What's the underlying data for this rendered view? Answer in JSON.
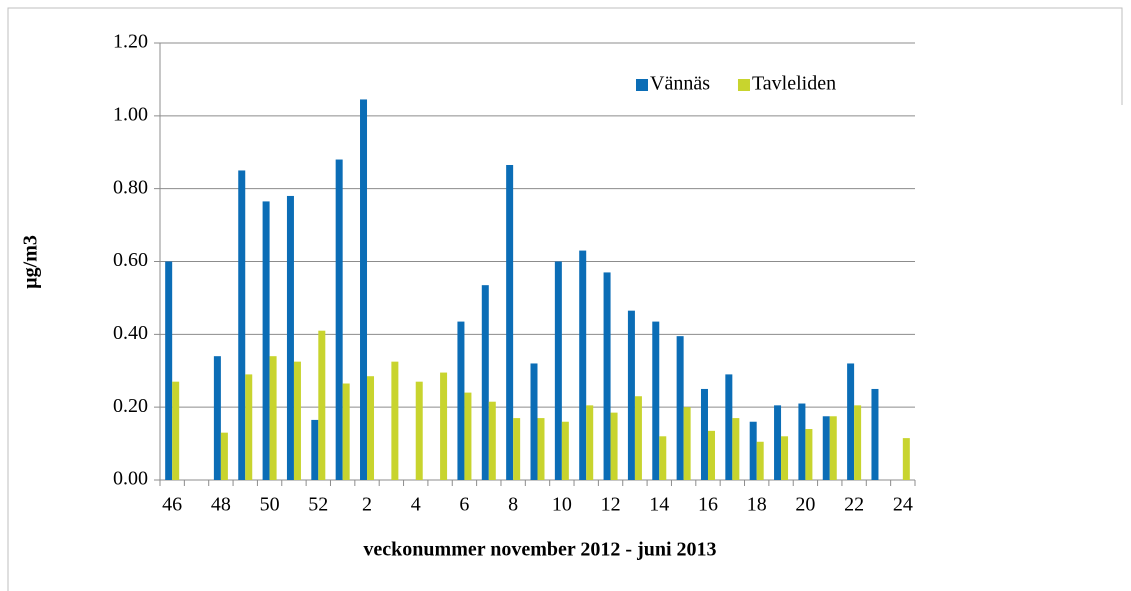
{
  "chart_data": {
    "type": "bar",
    "xlabel": "veckonummer november 2012 - juni 2013",
    "ylabel": "µg/m3",
    "categories": [
      "46",
      null,
      "48",
      null,
      "50",
      null,
      "52",
      null,
      "2",
      null,
      "4",
      null,
      "6",
      null,
      "8",
      null,
      "10",
      null,
      "12",
      null,
      "14",
      null,
      "16",
      null,
      "18",
      null,
      "20",
      null,
      "22",
      null,
      "24"
    ],
    "series": [
      {
        "name": "Vännäs",
        "color": "#0b6db6",
        "values": [
          0.6,
          null,
          0.34,
          0.85,
          0.765,
          0.78,
          0.165,
          0.88,
          1.045,
          null,
          null,
          null,
          0.435,
          0.535,
          0.865,
          0.32,
          0.6,
          0.63,
          0.57,
          0.465,
          0.435,
          0.395,
          0.25,
          0.29,
          0.16,
          0.205,
          0.21,
          0.175,
          0.32,
          0.25,
          null
        ]
      },
      {
        "name": "Tavleliden",
        "color": "#c8d42e",
        "values": [
          0.27,
          null,
          0.13,
          0.29,
          0.34,
          0.325,
          0.41,
          0.265,
          0.285,
          0.325,
          0.27,
          0.295,
          0.24,
          0.215,
          0.17,
          0.17,
          0.16,
          0.205,
          0.185,
          0.23,
          0.12,
          0.2,
          0.135,
          0.17,
          0.105,
          0.12,
          0.14,
          0.175,
          0.205,
          null,
          0.115
        ]
      }
    ],
    "ylim": [
      0,
      1.2
    ],
    "yticks": [
      {
        "value": 0,
        "label": "0.00"
      },
      {
        "value": 0.2,
        "label": "0.20"
      },
      {
        "value": 0.4,
        "label": "0.40"
      },
      {
        "value": 0.6,
        "label": "0.60"
      },
      {
        "value": 0.8,
        "label": "0.80"
      },
      {
        "value": 1.0,
        "label": "1.00"
      },
      {
        "value": 1.2,
        "label": "1.20"
      }
    ],
    "grid": true,
    "legend": "upper right"
  }
}
